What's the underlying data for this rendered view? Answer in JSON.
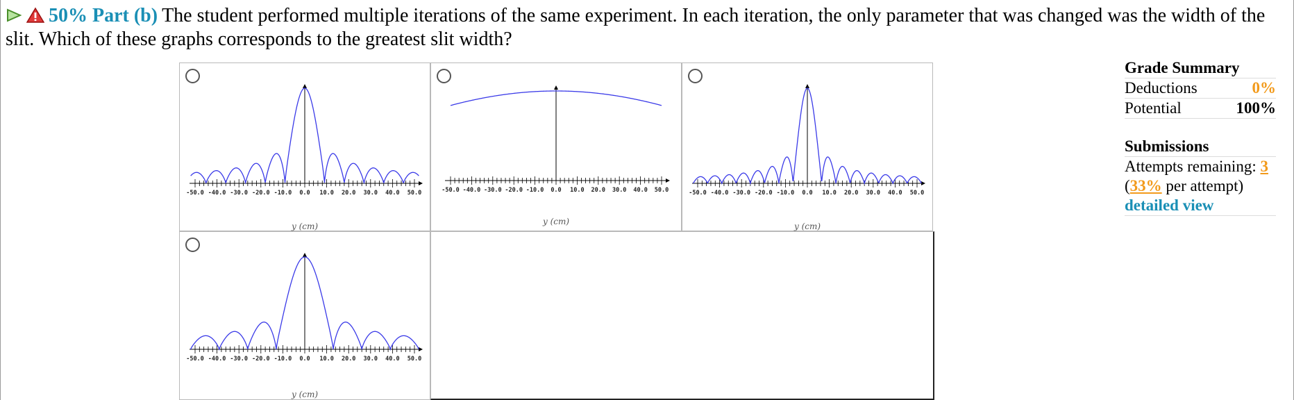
{
  "question": {
    "score": "50%",
    "part": "Part (b)",
    "text": "The student performed multiple iterations of the same experiment. In each iteration, the only parameter that was changed was the width of the slit. Which of these graphs corresponds to the greatest slit width?"
  },
  "axis": {
    "tick_labels": [
      "-50.0",
      "-40.0",
      "-30.0",
      "-20.0",
      "-10.0",
      "0.0",
      "10.0",
      "20.0",
      "30.0",
      "40.0",
      "50.0"
    ],
    "label": "y (cm)"
  },
  "choices": [
    {
      "id": "a",
      "selected": false
    },
    {
      "id": "b",
      "selected": false
    },
    {
      "id": "c",
      "selected": false
    },
    {
      "id": "d",
      "selected": false
    }
  ],
  "chart_data": [
    {
      "type": "line",
      "description_id": "graph-1",
      "x_range": [
        -50,
        50
      ],
      "xlabel": "y (cm)",
      "pattern": "central max with secondary maxima at ±13 and ±23"
    },
    {
      "type": "line",
      "description_id": "graph-2",
      "x_range": [
        -50,
        50
      ],
      "xlabel": "y (cm)",
      "pattern": "broad nearly flat curve"
    },
    {
      "type": "line",
      "description_id": "graph-3",
      "x_range": [
        -50,
        50
      ],
      "xlabel": "y (cm)",
      "pattern": "narrow central max with many secondary maxima"
    },
    {
      "type": "line",
      "description_id": "graph-4",
      "x_range": [
        -50,
        50
      ],
      "xlabel": "y (cm)",
      "pattern": "central max with secondary maxima at ±18"
    }
  ],
  "grade_summary": {
    "title": "Grade Summary",
    "deductions_label": "Deductions",
    "deductions_value": "0%",
    "potential_label": "Potential",
    "potential_value": "100%"
  },
  "submissions": {
    "title": "Submissions",
    "attempts_label": "Attempts remaining:",
    "attempts_value": "3",
    "per_attempt_pct": "33%",
    "per_attempt_text": "per attempt)",
    "open_paren": "(",
    "detailed_view": "detailed view"
  },
  "colors": {
    "accent": "#1a8fb5",
    "orange": "#f29a1b",
    "curve": "#3a3ae8"
  }
}
